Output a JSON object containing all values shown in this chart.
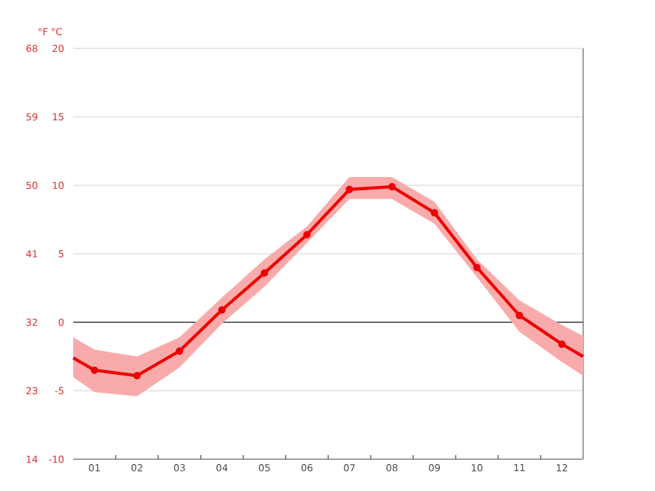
{
  "chart_data": {
    "type": "line",
    "xlabel": null,
    "ylabel": "°C",
    "y2label": "°F",
    "x": [
      0.5,
      1,
      2,
      3,
      4,
      5,
      6,
      7,
      8,
      9,
      10,
      11,
      12,
      12.5
    ],
    "series": [
      {
        "color": "#ee0000",
        "values": [
          -2.6,
          -3.5,
          -3.9,
          -2.1,
          0.9,
          3.6,
          6.4,
          9.7,
          9.9,
          8.0,
          4.0,
          0.5,
          -1.6,
          -2.5
        ],
        "lower": [
          -4.0,
          -5.1,
          -5.4,
          -3.3,
          -0.1,
          2.6,
          5.8,
          9.0,
          9.0,
          7.2,
          3.3,
          -0.7,
          -2.9,
          -3.9
        ],
        "upper": [
          -1.1,
          -2.0,
          -2.5,
          -1.1,
          1.8,
          4.6,
          7.0,
          10.6,
          10.6,
          8.8,
          4.6,
          1.6,
          -0.2,
          -1.0
        ]
      }
    ],
    "xlim": [
      0.5,
      12.5
    ],
    "xticks": [
      {
        "value": 1,
        "label": "01"
      },
      {
        "value": 1.5,
        "label": null
      },
      {
        "value": 2,
        "label": "02"
      },
      {
        "value": 2.5,
        "label": null
      },
      {
        "value": 3,
        "label": "03"
      },
      {
        "value": 3.5,
        "label": null
      },
      {
        "value": 4,
        "label": "04"
      },
      {
        "value": 4.5,
        "label": null
      },
      {
        "value": 5,
        "label": "05"
      },
      {
        "value": 5.5,
        "label": null
      },
      {
        "value": 6,
        "label": "06"
      },
      {
        "value": 6.5,
        "label": null
      },
      {
        "value": 7,
        "label": "07"
      },
      {
        "value": 7.5,
        "label": null
      },
      {
        "value": 8,
        "label": "08"
      },
      {
        "value": 8.5,
        "label": null
      },
      {
        "value": 9,
        "label": "09"
      },
      {
        "value": 9.5,
        "label": null
      },
      {
        "value": 10,
        "label": "10"
      },
      {
        "value": 10.5,
        "label": null
      },
      {
        "value": 11,
        "label": "11"
      },
      {
        "value": 11.5,
        "label": null
      },
      {
        "value": 12,
        "label": "12"
      }
    ],
    "ylim": [
      -10,
      20
    ],
    "yticks": [
      -10,
      -5,
      0,
      5,
      10,
      15,
      20
    ],
    "y2lim": [
      14,
      68
    ],
    "y2ticks": [
      14,
      23,
      32,
      41,
      50,
      59,
      68
    ],
    "ref_lines": [
      {
        "axis": "y",
        "value": 0,
        "label": null,
        "color": "#333333"
      }
    ],
    "grid": "y",
    "marker": "circle",
    "line_style": "solid"
  }
}
